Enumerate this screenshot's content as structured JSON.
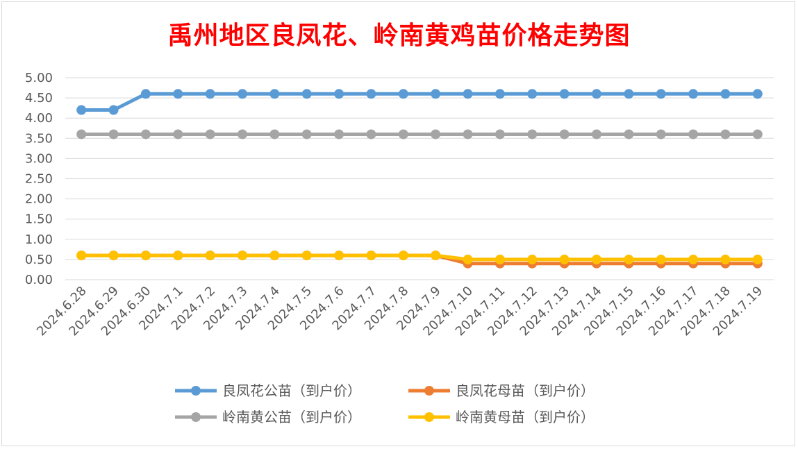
{
  "chart_data": {
    "type": "line",
    "title": "禹州地区良凤花、岭南黄鸡苗价格走势图",
    "xlabel": "",
    "ylabel": "",
    "ylim": [
      0,
      5
    ],
    "ytick_step": 0.5,
    "ytick_labels": [
      "0.00",
      "0.50",
      "1.00",
      "1.50",
      "2.00",
      "2.50",
      "3.00",
      "3.50",
      "4.00",
      "4.50",
      "5.00"
    ],
    "grid": "horizontal",
    "legend_position": "bottom",
    "categories": [
      "2024.6.28",
      "2024.6.29",
      "2024.6.30",
      "2024.7.1",
      "2024.7.2",
      "2024.7.3",
      "2024.7.4",
      "2024.7.5",
      "2024.7.6",
      "2024.7.7",
      "2024.7.8",
      "2024.7.9",
      "2024.7.10",
      "2024.7.11",
      "2024.7.12",
      "2024.7.13",
      "2024.7.14",
      "2024.7.15",
      "2024.7.16",
      "2024.7.17",
      "2024.7.18",
      "2024.7.19"
    ],
    "series": [
      {
        "name": "良凤花公苗（到户价）",
        "color": "#5b9bd5",
        "values": [
          4.2,
          4.2,
          4.6,
          4.6,
          4.6,
          4.6,
          4.6,
          4.6,
          4.6,
          4.6,
          4.6,
          4.6,
          4.6,
          4.6,
          4.6,
          4.6,
          4.6,
          4.6,
          4.6,
          4.6,
          4.6,
          4.6
        ]
      },
      {
        "name": "良凤花母苗（到户价）",
        "color": "#ed7d31",
        "values": [
          0.6,
          0.6,
          0.6,
          0.6,
          0.6,
          0.6,
          0.6,
          0.6,
          0.6,
          0.6,
          0.6,
          0.6,
          0.4,
          0.4,
          0.4,
          0.4,
          0.4,
          0.4,
          0.4,
          0.4,
          0.4,
          0.4
        ]
      },
      {
        "name": "岭南黄公苗（到户价）",
        "color": "#a5a5a5",
        "values": [
          3.6,
          3.6,
          3.6,
          3.6,
          3.6,
          3.6,
          3.6,
          3.6,
          3.6,
          3.6,
          3.6,
          3.6,
          3.6,
          3.6,
          3.6,
          3.6,
          3.6,
          3.6,
          3.6,
          3.6,
          3.6,
          3.6
        ]
      },
      {
        "name": "岭南黄母苗（到户价）",
        "color": "#ffc000",
        "values": [
          0.6,
          0.6,
          0.6,
          0.6,
          0.6,
          0.6,
          0.6,
          0.6,
          0.6,
          0.6,
          0.6,
          0.6,
          0.5,
          0.5,
          0.5,
          0.5,
          0.5,
          0.5,
          0.5,
          0.5,
          0.5,
          0.5
        ]
      }
    ]
  }
}
